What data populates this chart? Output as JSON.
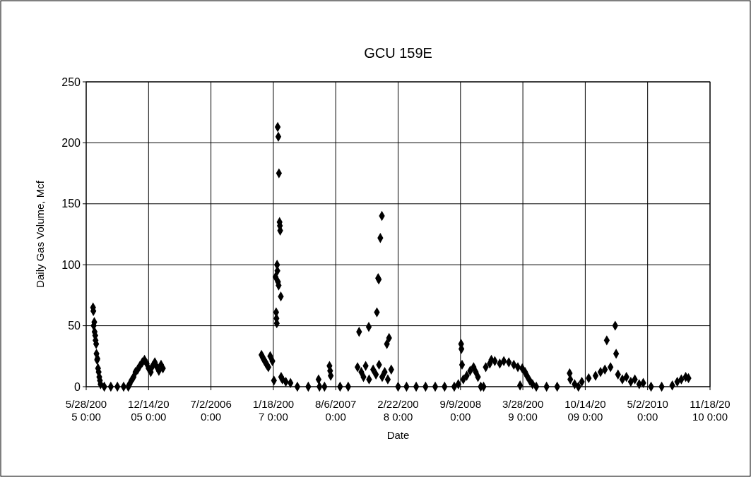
{
  "chart_data": {
    "type": "scatter",
    "title": "GCU 159E",
    "xlabel": "Date",
    "ylabel": "Daily Gas Volume, Mcf",
    "xlim": [
      "2005-05-28",
      "2010-11-18"
    ],
    "xticks": [
      {
        "value": "2005-05-28",
        "label": "5/28/2005 0:00"
      },
      {
        "value": "2005-12-14",
        "label": "12/14/2005 0:00"
      },
      {
        "value": "2006-07-02",
        "label": "7/2/2006 0:00"
      },
      {
        "value": "2007-01-18",
        "label": "1/18/2007 0:00"
      },
      {
        "value": "2007-08-06",
        "label": "8/6/2007 0:00"
      },
      {
        "value": "2008-02-22",
        "label": "2/22/2008 0:00"
      },
      {
        "value": "2008-09-09",
        "label": "9/9/2008 0:00"
      },
      {
        "value": "2009-03-28",
        "label": "3/28/2009 0:00"
      },
      {
        "value": "2009-10-14",
        "label": "10/14/2009 0:00"
      },
      {
        "value": "2010-05-02",
        "label": "5/2/2010 0:00"
      },
      {
        "value": "2010-11-18",
        "label": "11/18/2010 0:00"
      }
    ],
    "ylim": [
      0,
      250
    ],
    "yticks": [
      0,
      50,
      100,
      150,
      200,
      250
    ],
    "grid": true,
    "marker": "diamond",
    "series": [
      {
        "color": "#000000",
        "x": [
          "2005-06-19",
          "2005-06-20",
          "2005-06-21",
          "2005-06-23",
          "2005-06-24",
          "2005-06-26",
          "2005-06-27",
          "2005-06-29",
          "2005-06-30",
          "2005-07-02",
          "2005-07-03",
          "2005-07-05",
          "2005-07-07",
          "2005-07-09",
          "2005-07-11",
          "2005-07-13",
          "2005-07-25",
          "2005-08-15",
          "2005-09-05",
          "2005-09-25",
          "2005-10-10",
          "2005-10-14",
          "2005-10-20",
          "2005-10-27",
          "2005-11-02",
          "2005-11-09",
          "2005-11-16",
          "2005-11-24",
          "2005-12-01",
          "2005-12-08",
          "2005-12-14",
          "2005-12-21",
          "2005-12-27",
          "2006-01-03",
          "2006-01-10",
          "2006-01-16",
          "2006-01-23",
          "2006-01-29",
          "2006-12-11",
          "2006-12-15",
          "2006-12-19",
          "2006-12-24",
          "2006-12-28",
          "2007-01-02",
          "2007-01-08",
          "2007-01-15",
          "2007-01-20",
          "2007-01-25",
          "2007-01-27",
          "2007-01-28",
          "2007-01-29",
          "2007-01-30",
          "2007-01-31",
          "2007-02-01",
          "2007-02-02",
          "2007-02-03",
          "2007-02-04",
          "2007-02-05",
          "2007-02-07",
          "2007-02-08",
          "2007-02-09",
          "2007-02-11",
          "2007-02-12",
          "2007-02-16",
          "2007-02-27",
          "2007-03-14",
          "2007-04-05",
          "2007-05-10",
          "2007-06-12",
          "2007-06-15",
          "2007-07-01",
          "2007-07-17",
          "2007-07-19",
          "2007-07-21",
          "2007-08-20",
          "2007-09-15",
          "2007-10-15",
          "2007-10-20",
          "2007-10-27",
          "2007-11-03",
          "2007-11-10",
          "2007-11-20",
          "2007-11-21",
          "2007-12-04",
          "2007-12-13",
          "2007-12-16",
          "2007-12-20",
          "2007-12-22",
          "2007-12-23",
          "2007-12-27",
          "2008-01-01",
          "2008-01-02",
          "2008-01-10",
          "2008-01-17",
          "2008-01-20",
          "2008-01-24",
          "2008-01-31",
          "2008-02-22",
          "2008-03-20",
          "2008-04-20",
          "2008-05-20",
          "2008-06-20",
          "2008-07-20",
          "2008-08-20",
          "2008-09-02",
          "2008-09-11",
          "2008-09-12",
          "2008-09-14",
          "2008-09-18",
          "2008-09-29",
          "2008-10-10",
          "2008-10-21",
          "2008-10-28",
          "2008-11-04",
          "2008-11-13",
          "2008-11-22",
          "2008-11-29",
          "2008-12-12",
          "2008-12-17",
          "2008-12-28",
          "2009-01-13",
          "2009-01-26",
          "2009-02-11",
          "2009-02-27",
          "2009-03-12",
          "2009-03-19",
          "2009-03-26",
          "2009-04-04",
          "2009-04-10",
          "2009-04-19",
          "2009-04-28",
          "2009-05-10",
          "2009-06-12",
          "2009-07-16",
          "2009-08-25",
          "2009-08-27",
          "2009-09-10",
          "2009-09-22",
          "2009-10-03",
          "2009-10-25",
          "2009-11-16",
          "2009-12-02",
          "2009-12-16",
          "2009-12-22",
          "2010-01-03",
          "2010-01-18",
          "2010-01-21",
          "2010-01-27",
          "2010-02-10",
          "2010-02-23",
          "2010-03-09",
          "2010-03-22",
          "2010-04-05",
          "2010-04-18",
          "2010-05-13",
          "2010-06-16",
          "2010-07-20",
          "2010-08-05",
          "2010-08-18",
          "2010-09-01",
          "2010-09-10"
        ],
        "values": [
          65,
          62,
          50,
          53,
          45,
          42,
          38,
          35,
          27,
          22,
          23,
          15,
          12,
          8,
          5,
          2,
          0,
          0,
          0,
          0,
          0,
          2,
          5,
          8,
          12,
          14,
          17,
          20,
          22,
          19,
          15,
          12,
          17,
          20,
          16,
          13,
          18,
          15,
          26,
          24,
          22,
          20,
          18,
          16,
          25,
          21,
          5,
          90,
          61,
          56,
          52,
          100,
          95,
          213,
          86,
          205,
          83,
          175,
          135,
          132,
          128,
          74,
          8,
          6,
          4,
          3,
          0,
          0,
          6,
          0,
          0,
          17,
          13,
          9,
          0,
          0,
          16,
          45,
          12,
          8,
          17,
          49,
          6,
          14,
          10,
          61,
          89,
          88,
          18,
          122,
          140,
          8,
          12,
          35,
          6,
          40,
          14,
          0,
          0,
          0,
          0,
          0,
          0,
          0,
          2,
          35,
          31,
          18,
          6,
          9,
          13,
          16,
          12,
          8,
          0,
          0,
          16,
          19,
          22,
          21,
          19,
          21,
          20,
          18,
          16,
          1,
          15,
          12,
          9,
          5,
          2,
          0,
          0,
          0,
          11,
          6,
          2,
          0,
          4,
          7,
          9,
          12,
          14,
          38,
          16,
          50,
          27,
          10,
          6,
          8,
          4,
          6,
          2,
          3,
          0,
          0,
          1,
          4,
          6,
          8,
          7
        ]
      }
    ]
  }
}
